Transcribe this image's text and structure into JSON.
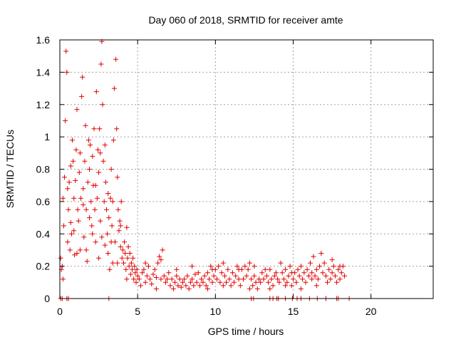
{
  "chart_data": {
    "type": "scatter",
    "title": "Day 060 of 2018, SRMTID for receiver amte",
    "xlabel": "GPS time / hours",
    "ylabel": "SRMTID / TECUs",
    "xlim": [
      0,
      24
    ],
    "ylim": [
      0,
      1.6
    ],
    "xticks": [
      0,
      5,
      10,
      15,
      20
    ],
    "xtick_labels": [
      "0",
      "5",
      "10",
      "15",
      "20"
    ],
    "yticks": [
      0,
      0.2,
      0.4,
      0.6,
      0.8,
      1,
      1.2,
      1.4,
      1.6
    ],
    "ytick_labels": [
      "0",
      "0.2",
      "0.4",
      "0.6",
      "0.8",
      "1",
      "1.2",
      "1.4",
      "1.6"
    ],
    "grid": true,
    "marker": "plus",
    "color": "#e00000",
    "series": [
      {
        "name": "SRMTID",
        "points": [
          [
            0.05,
            0.25
          ],
          [
            0.1,
            0.18
          ],
          [
            0.15,
            0.2
          ],
          [
            0.2,
            0.12
          ],
          [
            0.25,
            0.45
          ],
          [
            0.3,
            0.75
          ],
          [
            0.35,
            1.1
          ],
          [
            0.4,
            1.53
          ],
          [
            0.45,
            1.4
          ],
          [
            0.5,
            0.68
          ],
          [
            0.55,
            0.55
          ],
          [
            0.6,
            0.72
          ],
          [
            0.65,
            0.3
          ],
          [
            0.7,
            0.47
          ],
          [
            0.75,
            0.4
          ],
          [
            0.8,
            0.98
          ],
          [
            0.85,
            0.85
          ],
          [
            0.9,
            0.62
          ],
          [
            0.95,
            0.27
          ],
          [
            1.0,
            0.73
          ],
          [
            1.05,
            0.92
          ],
          [
            1.1,
            1.17
          ],
          [
            1.15,
            0.55
          ],
          [
            1.2,
            0.48
          ],
          [
            1.25,
            0.78
          ],
          [
            1.3,
            0.3
          ],
          [
            1.35,
            0.62
          ],
          [
            1.4,
            1.25
          ],
          [
            1.45,
            1.37
          ],
          [
            1.5,
            0.68
          ],
          [
            1.55,
            0.38
          ],
          [
            1.6,
            0.85
          ],
          [
            1.65,
            1.07
          ],
          [
            1.7,
            0.55
          ],
          [
            1.75,
            0.23
          ],
          [
            1.8,
            0.72
          ],
          [
            1.85,
            0.98
          ],
          [
            1.9,
            0.8
          ],
          [
            1.95,
            0.95
          ],
          [
            2.0,
            0.6
          ],
          [
            2.05,
            0.45
          ],
          [
            2.1,
            0.88
          ],
          [
            2.15,
            0.7
          ],
          [
            2.2,
            1.05
          ],
          [
            2.25,
            0.55
          ],
          [
            2.3,
            0.35
          ],
          [
            2.35,
            1.28
          ],
          [
            2.4,
            0.62
          ],
          [
            2.45,
            0.92
          ],
          [
            2.5,
            0.78
          ],
          [
            2.55,
            1.05
          ],
          [
            2.6,
            0.48
          ],
          [
            2.65,
            1.45
          ],
          [
            2.7,
            1.59
          ],
          [
            2.75,
            1.2
          ],
          [
            2.8,
            0.85
          ],
          [
            2.85,
            0.6
          ],
          [
            2.9,
            0.33
          ],
          [
            2.95,
            0.72
          ],
          [
            3.0,
            0.55
          ],
          [
            3.05,
            0.4
          ],
          [
            3.1,
            0.28
          ],
          [
            3.15,
            0.5
          ],
          [
            3.2,
            0.18
          ],
          [
            3.25,
            0.62
          ],
          [
            3.3,
            0.35
          ],
          [
            3.35,
            0.45
          ],
          [
            3.4,
            0.22
          ],
          [
            3.45,
            0.98
          ],
          [
            3.5,
            1.3
          ],
          [
            3.55,
            0.35
          ],
          [
            3.6,
            1.48
          ],
          [
            3.65,
            1.05
          ],
          [
            3.7,
            0.75
          ],
          [
            3.75,
            0.55
          ],
          [
            3.8,
            0.42
          ],
          [
            3.85,
            0.48
          ],
          [
            3.9,
            0.32
          ],
          [
            3.95,
            0.6
          ],
          [
            4.0,
            0.25
          ],
          [
            0.2,
            0.62
          ],
          [
            0.5,
            0.35
          ],
          [
            0.9,
            0.42
          ],
          [
            1.3,
            0.9
          ],
          [
            1.7,
            0.3
          ],
          [
            2.1,
            0.4
          ],
          [
            2.5,
            0.25
          ],
          [
            2.9,
            0.95
          ],
          [
            3.3,
            0.8
          ],
          [
            3.7,
            0.22
          ],
          [
            1.1,
            0.28
          ],
          [
            1.9,
            0.5
          ],
          [
            2.3,
            0.7
          ],
          [
            2.7,
            0.38
          ],
          [
            3.1,
            0.65
          ],
          [
            0.7,
            0.82
          ],
          [
            1.5,
            0.58
          ],
          [
            2.6,
            0.9
          ],
          [
            3.4,
            0.6
          ],
          [
            3.9,
            0.45
          ],
          [
            4.05,
            0.3
          ],
          [
            4.1,
            0.22
          ],
          [
            4.15,
            0.35
          ],
          [
            4.2,
            0.28
          ],
          [
            4.25,
            0.18
          ],
          [
            4.3,
            0.44
          ],
          [
            4.35,
            0.25
          ],
          [
            4.4,
            0.32
          ],
          [
            4.45,
            0.2
          ],
          [
            4.5,
            0.28
          ],
          [
            4.55,
            0.15
          ],
          [
            4.6,
            0.22
          ],
          [
            4.65,
            0.18
          ],
          [
            4.7,
            0.25
          ],
          [
            4.75,
            0.12
          ],
          [
            4.8,
            0.2
          ],
          [
            4.85,
            0.16
          ],
          [
            4.9,
            0.1
          ],
          [
            4.95,
            0.18
          ],
          [
            5.0,
            0.14
          ],
          [
            5.1,
            0.12
          ],
          [
            5.2,
            0.08
          ],
          [
            5.3,
            0.16
          ],
          [
            5.4,
            0.18
          ],
          [
            5.5,
            0.1
          ],
          [
            5.6,
            0.14
          ],
          [
            5.7,
            0.2
          ],
          [
            5.8,
            0.12
          ],
          [
            5.9,
            0.09
          ],
          [
            6.0,
            0.15
          ],
          [
            6.1,
            0.18
          ],
          [
            6.2,
            0.13
          ],
          [
            6.3,
            0.22
          ],
          [
            6.4,
            0.26
          ],
          [
            6.5,
            0.12
          ],
          [
            6.6,
            0.3
          ],
          [
            6.7,
            0.14
          ],
          [
            6.8,
            0.1
          ],
          [
            6.9,
            0.12
          ],
          [
            7.0,
            0.16
          ],
          [
            7.1,
            0.08
          ],
          [
            7.2,
            0.12
          ],
          [
            7.3,
            0.06
          ],
          [
            7.4,
            0.1
          ],
          [
            7.5,
            0.14
          ],
          [
            7.6,
            0.08
          ],
          [
            7.7,
            0.12
          ],
          [
            7.8,
            0.07
          ],
          [
            7.9,
            0.1
          ],
          [
            8.0,
            0.12
          ],
          [
            8.1,
            0.08
          ],
          [
            8.2,
            0.14
          ],
          [
            8.3,
            0.06
          ],
          [
            8.4,
            0.1
          ],
          [
            8.5,
            0.12
          ],
          [
            8.6,
            0.08
          ],
          [
            8.7,
            0.15
          ],
          [
            8.8,
            0.1
          ],
          [
            8.9,
            0.16
          ],
          [
            9.0,
            0.08
          ],
          [
            9.1,
            0.12
          ],
          [
            9.2,
            0.1
          ],
          [
            9.3,
            0.14
          ],
          [
            9.4,
            0.08
          ],
          [
            9.5,
            0.16
          ],
          [
            9.6,
            0.12
          ],
          [
            9.7,
            0.2
          ],
          [
            9.8,
            0.1
          ],
          [
            9.9,
            0.14
          ],
          [
            10.0,
            0.18
          ],
          [
            10.1,
            0.12
          ],
          [
            10.2,
            0.2
          ],
          [
            10.3,
            0.1
          ],
          [
            10.4,
            0.16
          ],
          [
            10.5,
            0.22
          ],
          [
            10.6,
            0.14
          ],
          [
            10.7,
            0.1
          ],
          [
            10.8,
            0.18
          ],
          [
            10.9,
            0.12
          ],
          [
            11.0,
            0.08
          ],
          [
            11.1,
            0.16
          ],
          [
            11.2,
            0.1
          ],
          [
            11.3,
            0.14
          ],
          [
            11.4,
            0.2
          ],
          [
            11.5,
            0.12
          ],
          [
            11.6,
            0.08
          ],
          [
            11.7,
            0.18
          ],
          [
            11.8,
            0.12
          ],
          [
            11.9,
            0.2
          ],
          [
            12.0,
            0.14
          ],
          [
            12.1,
            0.18
          ],
          [
            12.2,
            0.22
          ],
          [
            12.3,
            0.12
          ],
          [
            12.4,
            0.08
          ],
          [
            12.5,
            0.14
          ],
          [
            12.6,
            0.1
          ],
          [
            12.7,
            0.06
          ],
          [
            12.8,
            0.12
          ],
          [
            12.9,
            0.1
          ],
          [
            13.0,
            0.16
          ],
          [
            13.1,
            0.12
          ],
          [
            13.2,
            0.18
          ],
          [
            13.3,
            0.14
          ],
          [
            13.4,
            0.1
          ],
          [
            13.5,
            0.18
          ],
          [
            13.6,
            0.12
          ],
          [
            13.7,
            0.08
          ],
          [
            13.8,
            0.14
          ],
          [
            13.9,
            0.16
          ],
          [
            14.0,
            0.12
          ],
          [
            14.1,
            0.1
          ],
          [
            14.2,
            0.22
          ],
          [
            14.3,
            0.16
          ],
          [
            14.4,
            0.12
          ],
          [
            14.5,
            0.18
          ],
          [
            14.6,
            0.1
          ],
          [
            14.7,
            0.14
          ],
          [
            14.8,
            0.2
          ],
          [
            14.9,
            0.08
          ],
          [
            15.0,
            0.12
          ],
          [
            15.1,
            0.16
          ],
          [
            15.2,
            0.1
          ],
          [
            15.3,
            0.18
          ],
          [
            15.4,
            0.14
          ],
          [
            15.5,
            0.2
          ],
          [
            15.6,
            0.12
          ],
          [
            15.7,
            0.16
          ],
          [
            15.8,
            0.1
          ],
          [
            15.9,
            0.18
          ],
          [
            16.0,
            0.14
          ],
          [
            16.1,
            0.22
          ],
          [
            16.2,
            0.16
          ],
          [
            16.3,
            0.26
          ],
          [
            16.4,
            0.14
          ],
          [
            16.5,
            0.18
          ],
          [
            16.6,
            0.12
          ],
          [
            16.7,
            0.2
          ],
          [
            16.8,
            0.28
          ],
          [
            16.9,
            0.16
          ],
          [
            17.0,
            0.22
          ],
          [
            17.1,
            0.14
          ],
          [
            17.2,
            0.1
          ],
          [
            17.3,
            0.18
          ],
          [
            17.4,
            0.12
          ],
          [
            17.5,
            0.16
          ],
          [
            17.6,
            0.2
          ],
          [
            17.7,
            0.14
          ],
          [
            17.8,
            0.1
          ],
          [
            17.9,
            0.18
          ],
          [
            18.0,
            0.12
          ],
          [
            18.1,
            0.16
          ],
          [
            18.2,
            0.2
          ],
          [
            18.3,
            0.14
          ],
          [
            4.3,
            0.12
          ],
          [
            5.5,
            0.22
          ],
          [
            6.2,
            0.06
          ],
          [
            7.5,
            0.18
          ],
          [
            8.5,
            0.2
          ],
          [
            9.5,
            0.06
          ],
          [
            10.5,
            0.08
          ],
          [
            11.5,
            0.18
          ],
          [
            12.5,
            0.2
          ],
          [
            13.5,
            0.06
          ],
          [
            14.5,
            0.08
          ],
          [
            15.5,
            0.06
          ],
          [
            16.5,
            0.08
          ],
          [
            17.5,
            0.24
          ],
          [
            18.0,
            0.2
          ],
          [
            6.5,
            0.24
          ],
          [
            9.8,
            0.18
          ],
          [
            12.2,
            0.06
          ],
          [
            14.9,
            0.16
          ],
          [
            16.2,
            0.12
          ],
          [
            0.05,
            0.0
          ],
          [
            0.15,
            0.0
          ],
          [
            0.45,
            0.0
          ],
          [
            0.55,
            0.0
          ],
          [
            3.15,
            0.0
          ],
          [
            12.3,
            0.0
          ],
          [
            12.45,
            0.0
          ],
          [
            13.5,
            0.0
          ],
          [
            13.7,
            0.0
          ],
          [
            13.95,
            0.0
          ],
          [
            14.05,
            0.0
          ],
          [
            14.5,
            0.0
          ],
          [
            14.95,
            0.0
          ],
          [
            15.25,
            0.0
          ],
          [
            15.5,
            0.0
          ],
          [
            16.05,
            0.0
          ],
          [
            16.55,
            0.0
          ],
          [
            17.1,
            0.0
          ],
          [
            17.8,
            0.0
          ],
          [
            17.9,
            0.0
          ],
          [
            18.6,
            0.0
          ]
        ]
      }
    ]
  }
}
